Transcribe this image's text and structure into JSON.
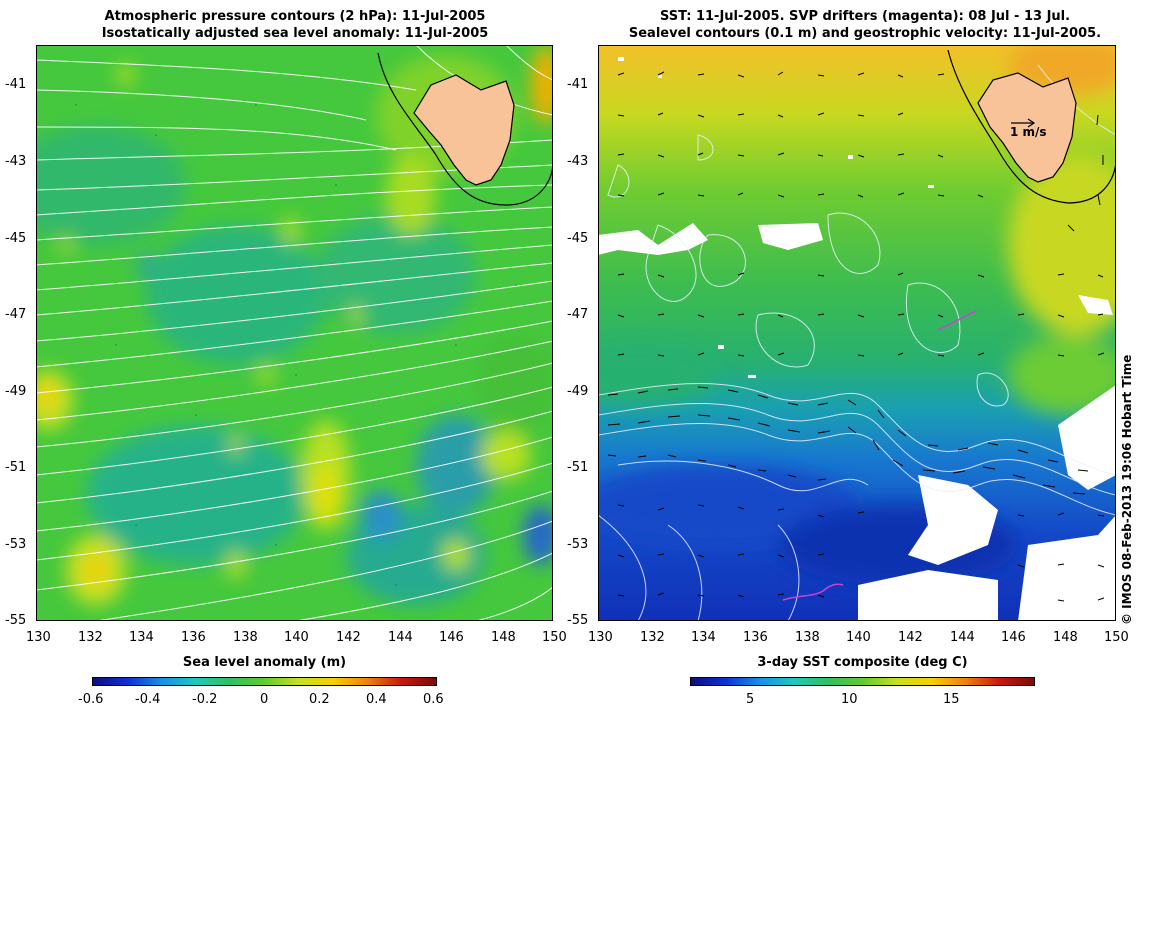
{
  "left_panel": {
    "title_line1": "Atmospheric pressure contours (2 hPa): 11-Jul-2005",
    "title_line2": "Isostatically adjusted sea level anomaly: 11-Jul-2005",
    "colorbar_label": "Sea level anomaly (m)",
    "colorbar_ticks": [
      "-0.6",
      "-0.4",
      "-0.2",
      "0",
      "0.2",
      "0.4",
      "0.6"
    ]
  },
  "right_panel": {
    "title_line1": "SST: 11-Jul-2005. SVP drifters (magenta): 08 Jul - 13 Jul.",
    "title_line2": "Sealevel contours (0.1 m) and geostrophic velocity: 11-Jul-2005.",
    "colorbar_label": "3-day SST composite (deg C)",
    "colorbar_ticks": [
      "5",
      "10",
      "15"
    ],
    "velocity_scale_label": "1 m/s"
  },
  "x_ticks": [
    "130",
    "132",
    "134",
    "136",
    "138",
    "140",
    "142",
    "144",
    "146",
    "148",
    "150"
  ],
  "y_ticks": [
    "-41",
    "-43",
    "-45",
    "-47",
    "-49",
    "-51",
    "-53",
    "-55"
  ],
  "credit": "© IMOS 08-Feb-2013 19:06 Hobart Time",
  "colors": {
    "land": "#f9c39a",
    "sst_warm": "#f4c02a",
    "sst_mid": "#34b85a",
    "sst_cold": "#1234c8",
    "sla_base": "#45c83d",
    "drifter": "#d040d0"
  }
}
